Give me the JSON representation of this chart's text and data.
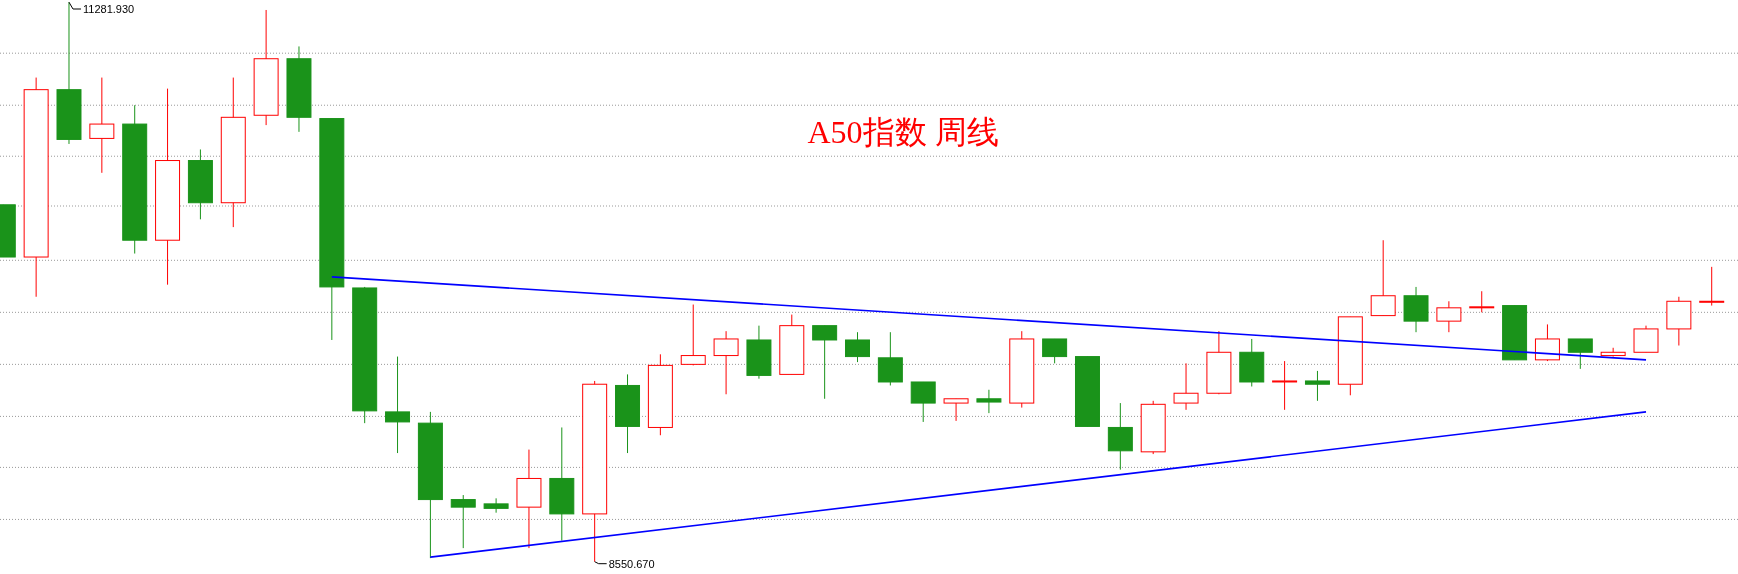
{
  "chart_data": {
    "type": "candlestick",
    "title": "A50指数 周线",
    "categories": [
      null,
      null,
      null,
      null,
      null,
      null,
      null,
      null,
      null,
      null,
      null,
      null,
      null,
      null,
      null,
      null,
      null,
      null,
      null,
      null,
      null,
      null,
      null,
      null,
      null,
      null,
      null,
      null,
      null,
      null,
      null,
      null,
      null,
      null,
      null,
      null,
      null,
      null,
      null,
      null,
      null,
      null,
      null,
      null,
      null,
      null,
      null,
      null,
      null,
      null,
      null,
      null,
      null
    ],
    "ohlc": [
      [
        10293,
        10293,
        10038,
        10038
      ],
      [
        10038,
        10914,
        9844,
        10855
      ],
      [
        10855,
        11281.93,
        10590,
        10612
      ],
      [
        10617,
        10914,
        10449,
        10687
      ],
      [
        10687,
        10779,
        10055,
        10120
      ],
      [
        10120,
        10860,
        9903,
        10509
      ],
      [
        10509,
        10563,
        10222,
        10303
      ],
      [
        10303,
        10914,
        10184,
        10720
      ],
      [
        10730,
        11244,
        10682,
        11006
      ],
      [
        11006,
        11066,
        10649,
        10720
      ],
      [
        10714,
        10714,
        9633,
        9892
      ],
      [
        9887,
        9892,
        9227,
        9287
      ],
      [
        9282,
        9552,
        9081,
        9233
      ],
      [
        9227,
        9282,
        8568,
        8854
      ],
      [
        8854,
        8876,
        8617,
        8817
      ],
      [
        8833,
        8860,
        8790,
        8811
      ],
      [
        8817,
        9098,
        8617,
        8957
      ],
      [
        8957,
        9206,
        8654,
        8784
      ],
      [
        8784,
        9433,
        8550.67,
        9417
      ],
      [
        9411,
        9465,
        9081,
        9211
      ],
      [
        9206,
        9563,
        9168,
        9509
      ],
      [
        9514,
        9806,
        9509,
        9557
      ],
      [
        9557,
        9676,
        9368,
        9638
      ],
      [
        9633,
        9703,
        9444,
        9460
      ],
      [
        9465,
        9757,
        9465,
        9703
      ],
      [
        9703,
        9703,
        9346,
        9633
      ],
      [
        9633,
        9671,
        9525,
        9552
      ],
      [
        9546,
        9671,
        9411,
        9428
      ],
      [
        9428,
        9428,
        9233,
        9325
      ],
      [
        9325,
        9346,
        9238,
        9346
      ],
      [
        9346,
        9390,
        9276,
        9330
      ],
      [
        9325,
        9676,
        9303,
        9638
      ],
      [
        9638,
        9638,
        9519,
        9552
      ],
      [
        9552,
        9552,
        9211,
        9211
      ],
      [
        9206,
        9325,
        9000,
        9092
      ],
      [
        9087,
        9336,
        9076,
        9319
      ],
      [
        9325,
        9519,
        9292,
        9373
      ],
      [
        9373,
        9676,
        9368,
        9573
      ],
      [
        9573,
        9638,
        9406,
        9428
      ],
      [
        9428,
        9530,
        9292,
        9433
      ],
      [
        9433,
        9482,
        9336,
        9417
      ],
      [
        9417,
        9746,
        9363,
        9746
      ],
      [
        9752,
        10120,
        9752,
        9849
      ],
      [
        9849,
        9892,
        9671,
        9725
      ],
      [
        9725,
        9822,
        9671,
        9790
      ],
      [
        9790,
        9871,
        9768,
        9795
      ],
      [
        9801,
        9801,
        9536,
        9536
      ],
      [
        9536,
        9709,
        9530,
        9638
      ],
      [
        9638,
        9638,
        9492,
        9573
      ],
      [
        9557,
        9595,
        9552,
        9573
      ],
      [
        9573,
        9703,
        9573,
        9687
      ],
      [
        9687,
        9844,
        9606,
        9822
      ],
      [
        9817,
        9990,
        9801,
        9822
      ]
    ],
    "colors": [
      "#1a931a",
      "#ff0000",
      "#1a931a",
      "#ff0000",
      "#1a931a",
      "#ff0000",
      "#1a931a",
      "#ff0000",
      "#ff0000",
      "#1a931a",
      "#1a931a",
      "#1a931a",
      "#1a931a",
      "#1a931a",
      "#1a931a",
      "#1a931a",
      "#ff0000",
      "#1a931a",
      "#ff0000",
      "#1a931a",
      "#ff0000",
      "#ff0000",
      "#ff0000",
      "#1a931a",
      "#ff0000",
      "#1a931a",
      "#1a931a",
      "#1a931a",
      "#1a931a",
      "#ff0000",
      "#1a931a",
      "#ff0000",
      "#1a931a",
      "#1a931a",
      "#1a931a",
      "#ff0000",
      "#ff0000",
      "#ff0000",
      "#1a931a",
      "#ff0000",
      "#1a931a",
      "#ff0000",
      "#ff0000",
      "#1a931a",
      "#ff0000",
      "#ff0000",
      "#1a931a",
      "#ff0000",
      "#1a931a",
      "#ff0000",
      "#ff0000",
      "#ff0000",
      "#ff0000"
    ],
    "series": [
      {
        "type": "line",
        "color": "#0000ff",
        "values": [
          null,
          null,
          null,
          null,
          null,
          null,
          null,
          null,
          null,
          null,
          9941,
          null,
          null,
          null,
          null,
          null,
          null,
          null,
          null,
          null,
          null,
          null,
          null,
          null,
          null,
          null,
          null,
          null,
          null,
          null,
          null,
          null,
          null,
          null,
          null,
          null,
          null,
          null,
          null,
          null,
          null,
          null,
          null,
          null,
          null,
          null,
          null,
          null,
          null,
          null,
          9536,
          null,
          null
        ]
      },
      {
        "type": "line",
        "color": "#0000ff",
        "values": [
          null,
          null,
          null,
          null,
          null,
          null,
          null,
          null,
          null,
          null,
          null,
          null,
          null,
          8573,
          null,
          null,
          null,
          null,
          null,
          null,
          null,
          null,
          null,
          null,
          null,
          null,
          null,
          null,
          null,
          null,
          null,
          null,
          null,
          null,
          null,
          null,
          null,
          null,
          null,
          null,
          null,
          null,
          null,
          null,
          null,
          null,
          null,
          null,
          null,
          null,
          9282,
          null,
          null
        ]
      }
    ],
    "annotations": [
      "11281.930",
      "8550.670"
    ],
    "yticks": [
      {
        "value": 11033,
        "label": null
      },
      {
        "value": 10779,
        "label": null
      },
      {
        "value": 10530,
        "label": null
      },
      {
        "value": 10287,
        "label": null
      },
      {
        "value": 10022,
        "label": null
      },
      {
        "value": 9768,
        "label": null
      },
      {
        "value": 9514,
        "label": null
      },
      {
        "value": 9260,
        "label": null
      },
      {
        "value": 9011,
        "label": null
      },
      {
        "value": 8757,
        "label": null
      }
    ],
    "grid": "y"
  }
}
